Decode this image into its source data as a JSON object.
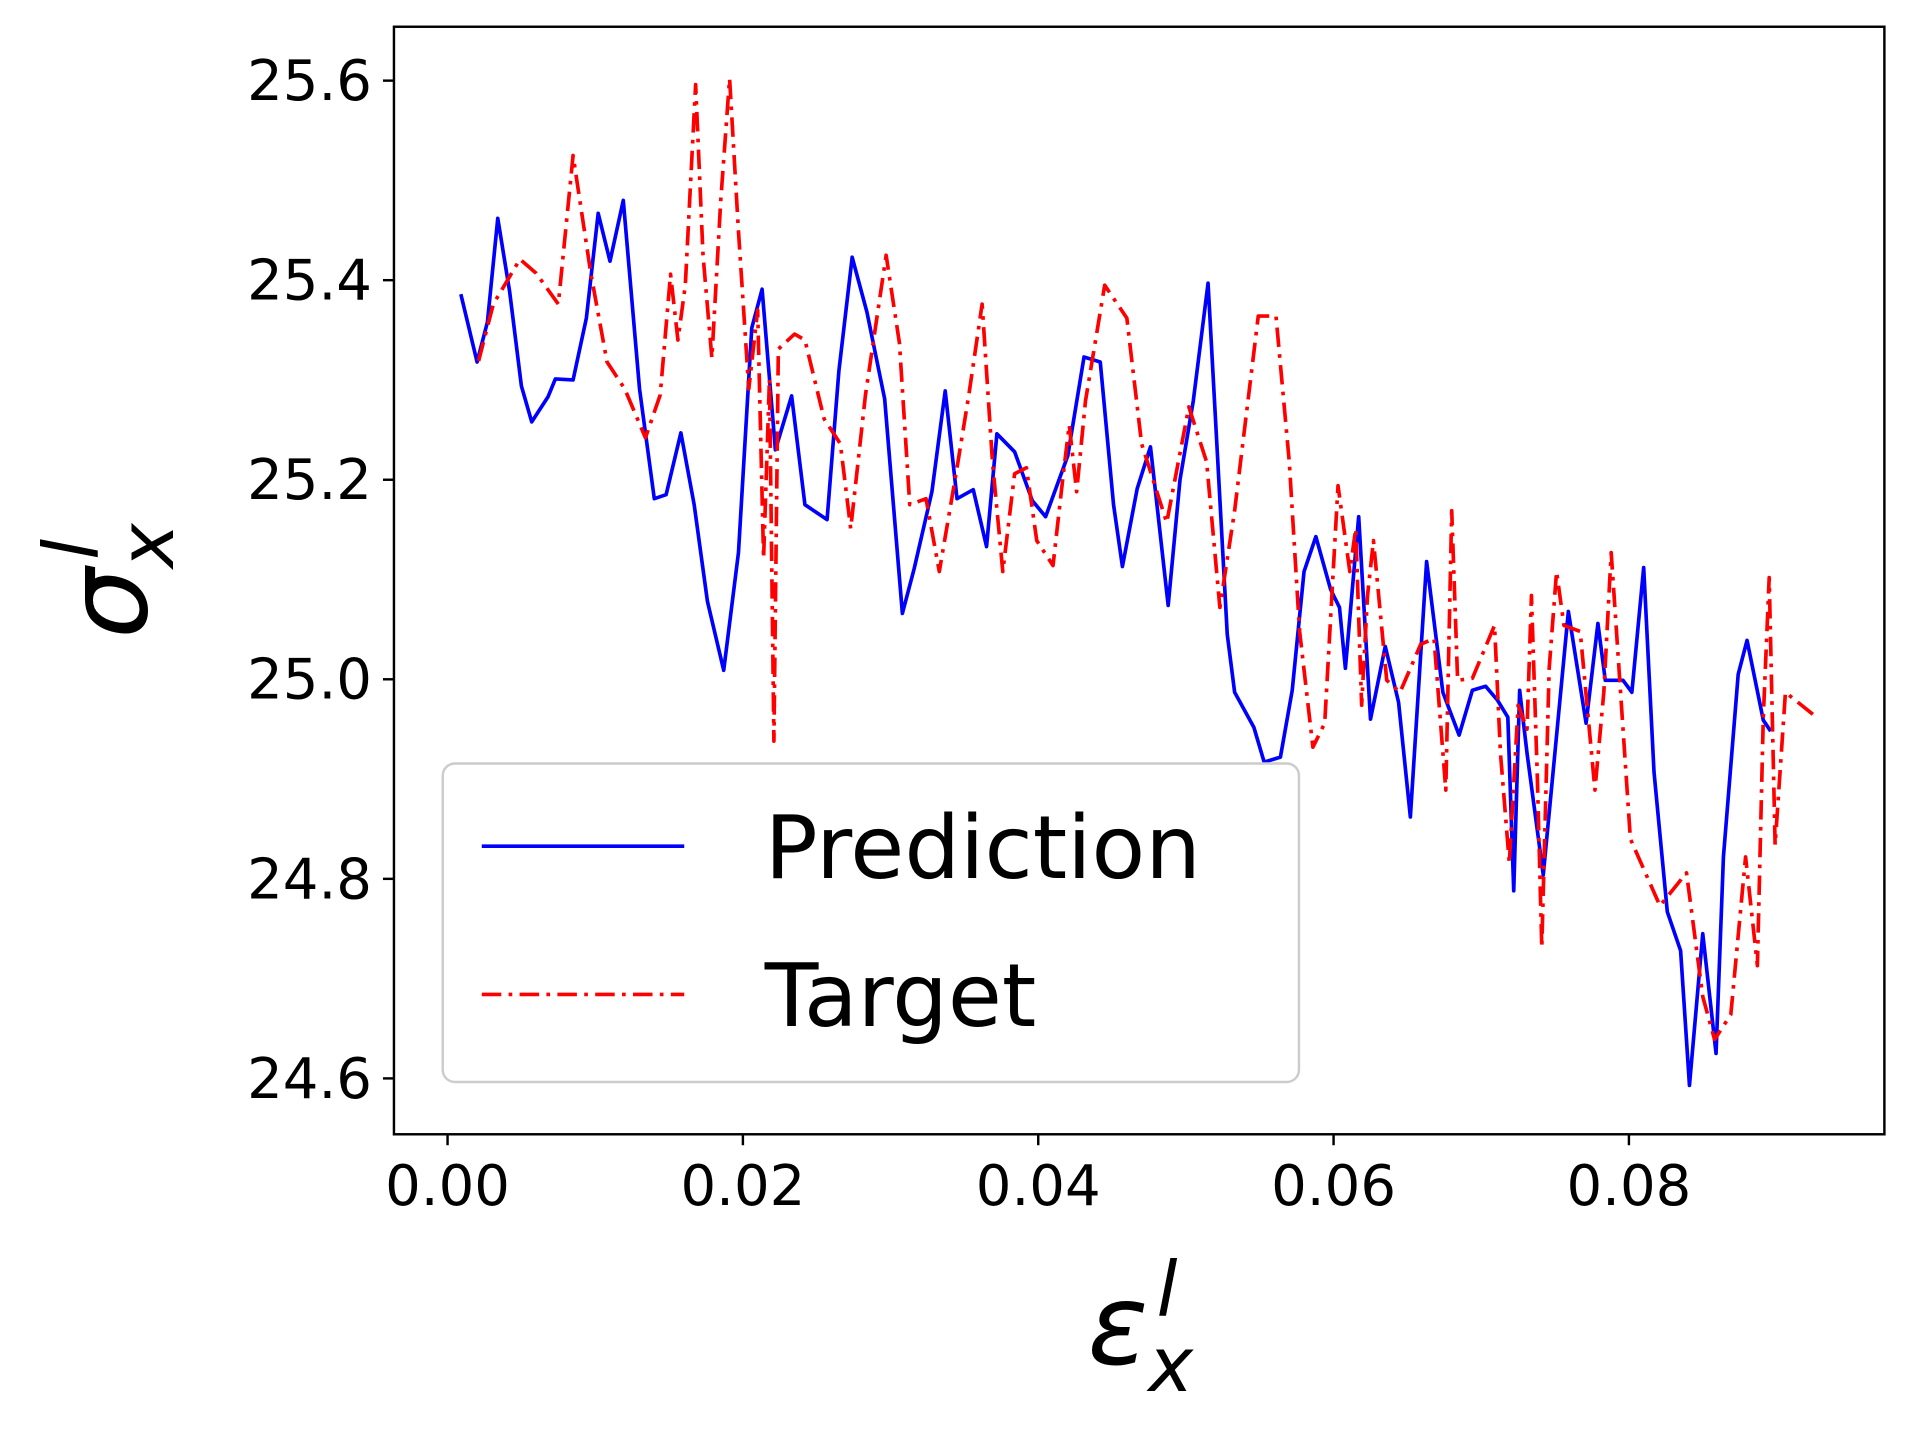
{
  "chart_data": {
    "type": "line",
    "xlabel": "ε",
    "xlabel_subscript": "x",
    "xlabel_superscript": "l",
    "ylabel": "σ",
    "ylabel_subscript": "x",
    "ylabel_superscript": "l",
    "xlim": [
      -0.00363,
      0.0973
    ],
    "ylim": [
      24.544,
      25.654
    ],
    "xticks": [
      {
        "value": 0,
        "label": "0.00"
      },
      0.02,
      0.04,
      0.06,
      0.08
    ],
    "yticks": [
      24.6,
      24.8,
      {
        "value": 25,
        "label": "25.0"
      },
      25.2,
      25.4,
      25.6
    ],
    "legend": "lower left",
    "series": [
      {
        "name": "Prediction",
        "color": "#0000ff",
        "linestyle": "solid",
        "x": [
          0.0009,
          0.002,
          0.0027,
          0.0034,
          0.0042,
          0.005,
          0.0057,
          0.0068,
          0.0073,
          0.0085,
          0.0094,
          0.0102,
          0.011,
          0.0119,
          0.013,
          0.014,
          0.0148,
          0.0158,
          0.0167,
          0.0176,
          0.0187,
          0.0197,
          0.0206,
          0.0213,
          0.0222,
          0.0233,
          0.0242,
          0.0257,
          0.0265,
          0.0274,
          0.0284,
          0.0296,
          0.0308,
          0.0316,
          0.0328,
          0.0337,
          0.0345,
          0.0356,
          0.0365,
          0.0372,
          0.0384,
          0.0396,
          0.0405,
          0.042,
          0.0431,
          0.0442,
          0.0451,
          0.0457,
          0.0467,
          0.0476,
          0.0488,
          0.0496,
          0.0505,
          0.0515,
          0.0528,
          0.0533,
          0.0546,
          0.0553,
          0.0564,
          0.0572,
          0.058,
          0.0588,
          0.0598,
          0.0604,
          0.0608,
          0.0617,
          0.0625,
          0.0635,
          0.0644,
          0.0652,
          0.0663,
          0.0674,
          0.0685,
          0.0694,
          0.0703,
          0.0711,
          0.0718,
          0.0722,
          0.0726,
          0.0731,
          0.0742,
          0.075,
          0.0759,
          0.0771,
          0.0779,
          0.0784,
          0.0796,
          0.0802,
          0.081,
          0.0817,
          0.0826,
          0.0835,
          0.0841,
          0.085,
          0.0859,
          0.0864,
          0.0874,
          0.088,
          0.0891,
          0.0896
        ],
        "values": [
          25.386,
          25.318,
          25.358,
          25.462,
          25.389,
          25.294,
          25.258,
          25.283,
          25.301,
          25.3,
          25.362,
          25.467,
          25.419,
          25.48,
          25.291,
          25.181,
          25.185,
          25.247,
          25.175,
          25.078,
          25.009,
          25.127,
          25.352,
          25.391,
          25.23,
          25.284,
          25.175,
          25.16,
          25.309,
          25.423,
          25.368,
          25.281,
          25.066,
          25.111,
          25.188,
          25.289,
          25.181,
          25.19,
          25.133,
          25.246,
          25.228,
          25.179,
          25.163,
          25.224,
          25.323,
          25.318,
          25.175,
          25.113,
          25.191,
          25.233,
          25.074,
          25.2,
          25.279,
          25.397,
          25.045,
          24.987,
          24.952,
          24.917,
          24.922,
          24.989,
          25.108,
          25.143,
          25.09,
          25.072,
          25.011,
          25.163,
          24.96,
          25.033,
          24.977,
          24.862,
          25.118,
          24.987,
          24.944,
          24.989,
          24.993,
          24.979,
          24.962,
          24.788,
          24.989,
          24.926,
          24.804,
          24.928,
          25.068,
          24.956,
          25.056,
          24.999,
          24.999,
          24.987,
          25.112,
          24.907,
          24.767,
          24.728,
          24.593,
          24.745,
          24.625,
          24.822,
          25.005,
          25.039,
          24.959,
          24.948
        ]
      },
      {
        "name": "Target",
        "color": "#ff0000",
        "linestyle": "dashdot",
        "x": [
          0.0021,
          0.0031,
          0.0049,
          0.006,
          0.0075,
          0.0085,
          0.0097,
          0.0108,
          0.012,
          0.0134,
          0.0144,
          0.0151,
          0.0156,
          0.0161,
          0.0168,
          0.0173,
          0.0179,
          0.0185,
          0.0191,
          0.0197,
          0.0204,
          0.021,
          0.0214,
          0.0218,
          0.0221,
          0.0224,
          0.0235,
          0.0242,
          0.0255,
          0.0266,
          0.0273,
          0.0283,
          0.0297,
          0.0306,
          0.0313,
          0.0324,
          0.0333,
          0.0345,
          0.0353,
          0.0362,
          0.0369,
          0.0376,
          0.0384,
          0.0392,
          0.0399,
          0.041,
          0.0417,
          0.0421,
          0.0426,
          0.0432,
          0.0445,
          0.046,
          0.047,
          0.0487,
          0.0502,
          0.0514,
          0.0523,
          0.0533,
          0.0549,
          0.0561,
          0.057,
          0.0577,
          0.0586,
          0.0594,
          0.0603,
          0.0611,
          0.0615,
          0.0619,
          0.0623,
          0.0627,
          0.0636,
          0.0645,
          0.0659,
          0.0668,
          0.0676,
          0.068,
          0.0684,
          0.0694,
          0.0709,
          0.0713,
          0.0719,
          0.0725,
          0.0731,
          0.0734,
          0.0738,
          0.0741,
          0.0746,
          0.0751,
          0.0756,
          0.0767,
          0.0777,
          0.0783,
          0.0788,
          0.0801,
          0.0821,
          0.0839,
          0.085,
          0.0858,
          0.0869,
          0.0879,
          0.0887,
          0.0891,
          0.0895,
          0.0899,
          0.0906,
          0.0927
        ],
        "values": [
          25.319,
          25.376,
          25.421,
          25.407,
          25.376,
          25.525,
          25.407,
          25.318,
          25.291,
          25.242,
          25.285,
          25.406,
          25.34,
          25.395,
          25.596,
          25.425,
          25.322,
          25.48,
          25.602,
          25.449,
          25.291,
          25.37,
          25.121,
          25.301,
          24.938,
          25.331,
          25.346,
          25.34,
          25.261,
          25.236,
          25.151,
          25.285,
          25.425,
          25.337,
          25.175,
          25.181,
          25.108,
          25.212,
          25.285,
          25.376,
          25.218,
          25.108,
          25.206,
          25.212,
          25.139,
          25.114,
          25.206,
          25.255,
          25.188,
          25.279,
          25.395,
          25.362,
          25.236,
          25.157,
          25.273,
          25.218,
          25.072,
          25.169,
          25.364,
          25.364,
          25.218,
          25.048,
          24.932,
          24.956,
          25.194,
          25.108,
          25.151,
          24.974,
          25.084,
          25.139,
          24.999,
          24.987,
          25.035,
          25.041,
          24.889,
          25.169,
          24.999,
          25.001,
          25.054,
          24.926,
          24.816,
          24.974,
          24.95,
          25.084,
          24.901,
          24.731,
          25.011,
          25.108,
          25.054,
          25.048,
          24.889,
          24.987,
          25.127,
          24.84,
          24.773,
          24.806,
          24.682,
          24.639,
          24.664,
          24.822,
          24.713,
          24.962,
          25.102,
          24.834,
          24.987,
          24.962
        ]
      }
    ]
  }
}
